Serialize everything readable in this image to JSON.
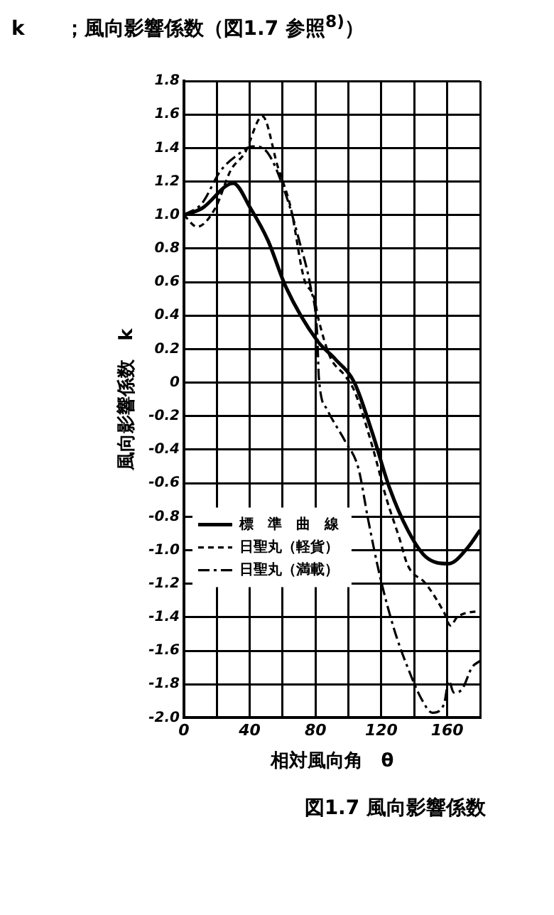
{
  "chart_data": {
    "type": "line",
    "title": "k　　；風向影響係数（図1.7 参照$^{8)}$）",
    "xlabel": "相対風向角　θ",
    "ylabel": "風向影響係数　k",
    "annotations": [
      "図1.7 風向影響係数"
    ],
    "xlim": [
      0,
      180
    ],
    "xticks": [
      0,
      {
        "value": 20,
        "label": null
      },
      40,
      {
        "value": 60,
        "label": null
      },
      80,
      {
        "value": 100,
        "label": null
      },
      120,
      {
        "value": 140,
        "label": null
      },
      160,
      {
        "value": 180,
        "label": null
      }
    ],
    "ylim": [
      -2.0,
      1.8
    ],
    "yticks": [
      {
        "value": -2.0,
        "label": "-2.0"
      },
      -1.8,
      -1.6,
      -1.4,
      -1.2,
      {
        "value": -1.0,
        "label": "-1.0"
      },
      -0.8,
      -0.6,
      -0.4,
      -0.2,
      0,
      0.2,
      0.4,
      0.6,
      0.8,
      {
        "value": 1.0,
        "label": "1.0"
      },
      1.2,
      1.4,
      1.6,
      1.8
    ],
    "grid": true,
    "legend": "left",
    "marker": "none",
    "series": [
      {
        "name": "標　準　曲　線",
        "color": "#000000",
        "line_style": "solid",
        "x": [
          0,
          11,
          30,
          40.5,
          51,
          62,
          81,
          92,
          103.6,
          114.5,
          125,
          136,
          147,
          161,
          172,
          180
        ],
        "values": [
          1.0,
          1.04,
          1.19,
          1.04,
          0.85,
          0.57,
          0.25,
          0.14,
          0,
          -0.3,
          -0.63,
          -0.88,
          -1.04,
          -1.08,
          -0.99,
          -0.88
        ]
      },
      {
        "name": "日聖丸（軽貨）",
        "color": "#000000",
        "line_style": "dashed",
        "x": [
          0,
          8,
          19,
          28.6,
          37,
          47.7,
          57,
          65,
          73,
          79,
          82,
          89,
          98,
          103.6,
          114.5,
          123,
          131,
          136,
          147,
          158,
          162,
          166,
          180
        ],
        "values": [
          1.0,
          0.93,
          1.04,
          1.27,
          1.37,
          1.59,
          1.29,
          1.04,
          0.62,
          0.51,
          0.37,
          0.15,
          0.04,
          -0.05,
          -0.38,
          -0.69,
          -0.93,
          -1.09,
          -1.2,
          -1.37,
          -1.45,
          -1.4,
          -1.36
        ]
      },
      {
        "name": "日聖丸（満載）",
        "color": "#000000",
        "line_style": "dashdot",
        "x": [
          0,
          11,
          22,
          32.7,
          42,
          51,
          62,
          70,
          77,
          81,
          82,
          87,
          98,
          106,
          112,
          119,
          128,
          136,
          144.5,
          151,
          158,
          161,
          164,
          169,
          175,
          180
        ],
        "values": [
          1.0,
          1.07,
          1.26,
          1.36,
          1.41,
          1.37,
          1.12,
          0.85,
          0.57,
          0.29,
          0.03,
          -0.16,
          -0.35,
          -0.51,
          -0.82,
          -1.15,
          -1.48,
          -1.7,
          -1.89,
          -1.97,
          -1.92,
          -1.78,
          -1.85,
          -1.83,
          -1.7,
          -1.66
        ]
      }
    ]
  }
}
